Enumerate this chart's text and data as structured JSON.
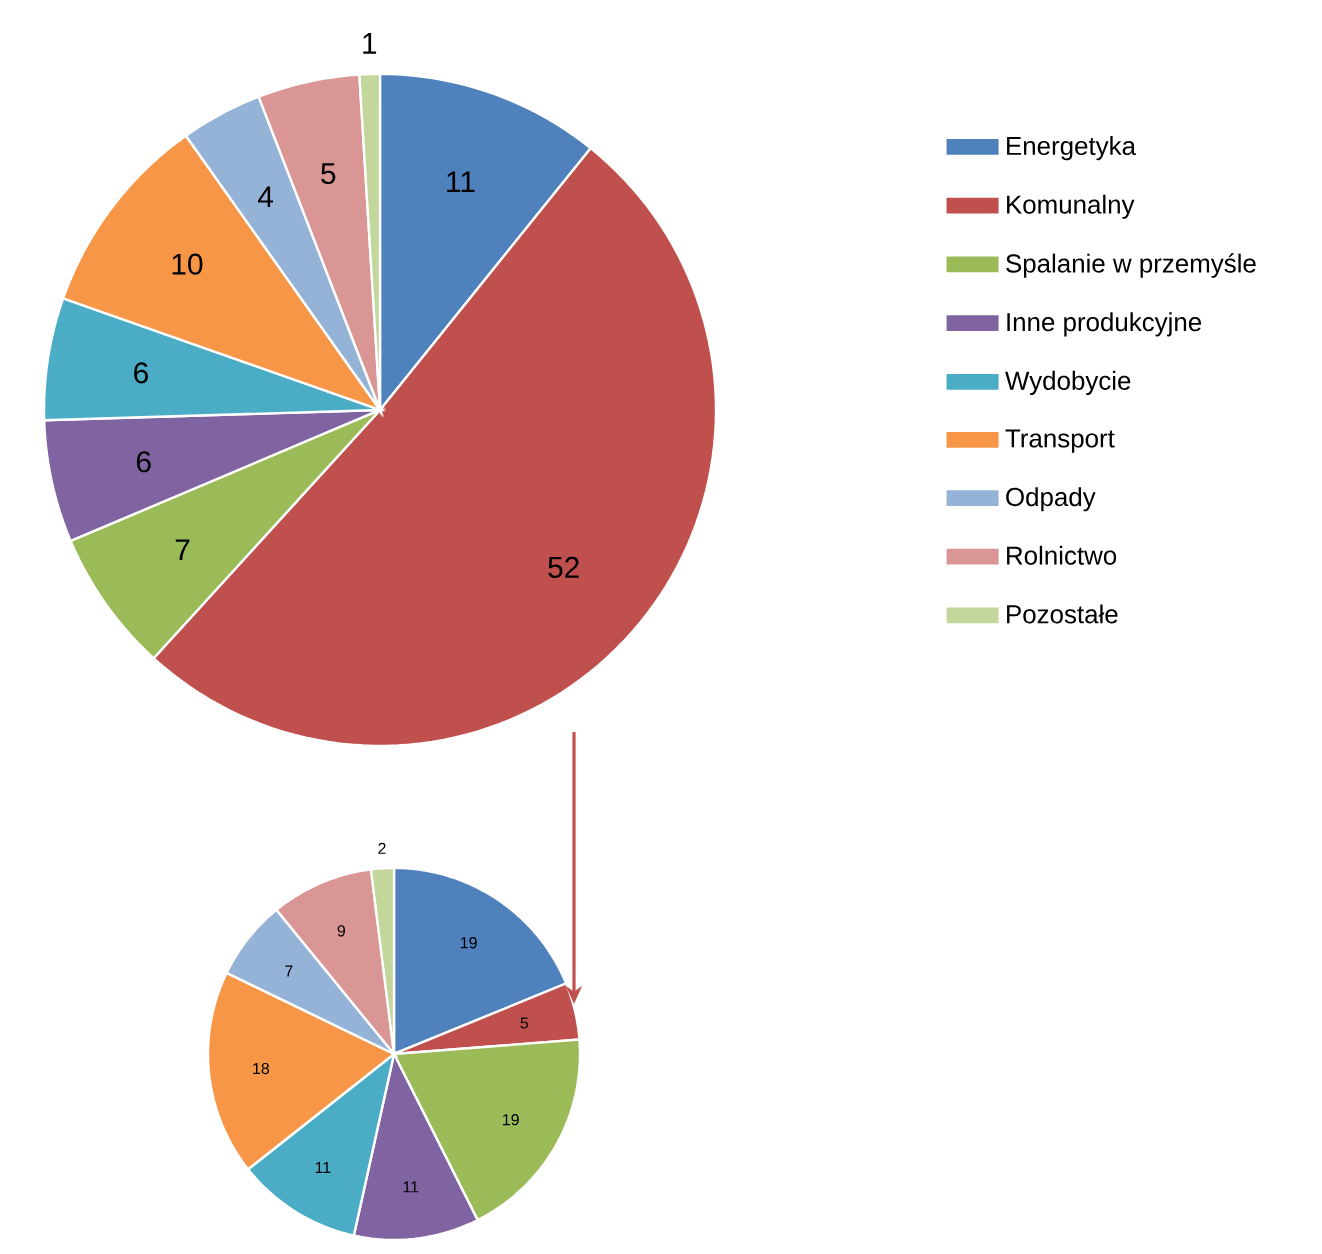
{
  "chart_data": [
    {
      "type": "pie",
      "categories": [
        "Energetyka",
        "Komunalny",
        "Spalanie w przemyśle",
        "Inne produkcyjne",
        "Wydobycie",
        "Transport",
        "Odpady",
        "Rolnictwo",
        "Pozostałe"
      ],
      "values": [
        11,
        52,
        7,
        6,
        6,
        10,
        4,
        5,
        1
      ],
      "colors": [
        "#4f81bd",
        "#c0504d",
        "#9bbb59",
        "#8064a2",
        "#4bacc6",
        "#f79646",
        "#95b3d7",
        "#d99694",
        "#c3d69b"
      ],
      "data_labels": true,
      "legend": "right"
    },
    {
      "type": "pie",
      "categories": [
        null,
        null,
        null,
        null,
        null,
        null,
        null,
        null,
        null
      ],
      "values": [
        19,
        5,
        19,
        11,
        11,
        18,
        7,
        9,
        2
      ],
      "colors": [
        "#4f81bd",
        "#c0504d",
        "#9bbb59",
        "#8064a2",
        "#4bacc6",
        "#f79646",
        "#95b3d7",
        "#d99694",
        "#c3d69b"
      ],
      "data_labels": true,
      "legend": false
    }
  ]
}
